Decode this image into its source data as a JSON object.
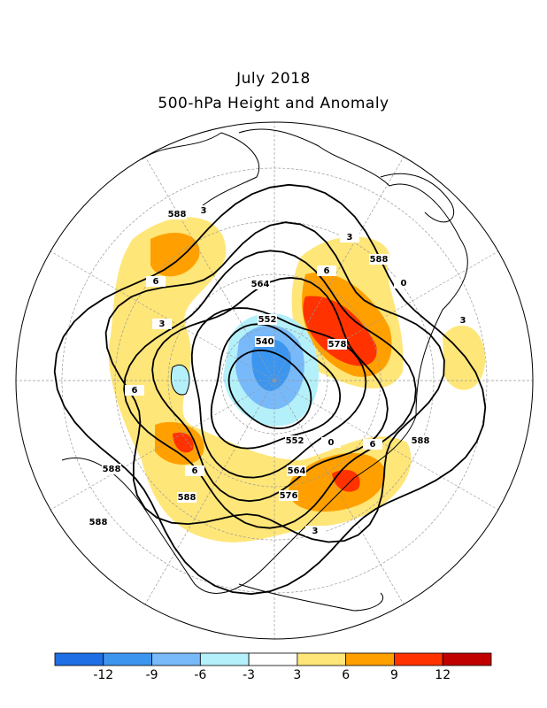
{
  "header": {
    "title": "July 2018",
    "subtitle": "500-hPa Height and Anomaly"
  },
  "contour_labels": [
    "588",
    "3",
    "3",
    "588",
    "564",
    "6",
    "6",
    "3",
    "552",
    "540",
    "578",
    "6",
    "3",
    "0",
    "588",
    "6",
    "588",
    "564",
    "576",
    "552",
    "0",
    "6",
    "588",
    "588",
    "3"
  ],
  "colorbar": {
    "colors": [
      "#1e6ee6",
      "#3c96f0",
      "#78b9fa",
      "#b4f0fa",
      "#ffffff",
      "#ffe678",
      "#ffa000",
      "#ff3200",
      "#c00000"
    ],
    "ticks": [
      -12,
      -9,
      -6,
      -3,
      3,
      6,
      9,
      12
    ]
  }
}
